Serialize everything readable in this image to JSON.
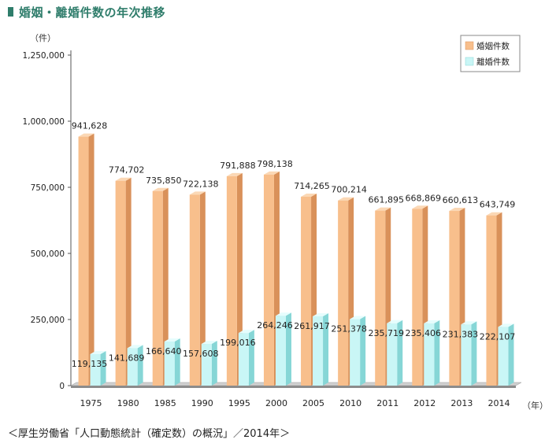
{
  "title": "婚姻・離婚件数の年次推移",
  "unit_label": "（件）",
  "x_unit_label": "（年）",
  "source": "＜厚生労働省「人口動態統計（確定数）の概況」／2014年＞",
  "colors": {
    "title": "#2f7d6b",
    "marriage_front": "#f8bf8c",
    "marriage_side": "#d9915a",
    "marriage_top": "#fbd8b5",
    "divorce_front": "#c9f6f6",
    "divorce_side": "#86d6d6",
    "divorce_top": "#e6fdfd",
    "floor": "#8c8c8c"
  },
  "chart_data": {
    "type": "bar",
    "title": "婚姻・離婚件数の年次推移",
    "ylabel": "（件）",
    "xlabel": "（年）",
    "ylim": [
      0,
      1250000
    ],
    "yticks": [
      0,
      250000,
      500000,
      750000,
      1000000,
      1250000
    ],
    "ytick_labels": [
      "0",
      "250,000",
      "500,000",
      "750,000",
      "1,000,000",
      "1,250,000"
    ],
    "categories": [
      "1975",
      "1980",
      "1985",
      "1990",
      "1995",
      "2000",
      "2005",
      "2010",
      "2011",
      "2012",
      "2013",
      "2014"
    ],
    "legend_position": "top-right",
    "series": [
      {
        "name": "婚姻件数",
        "values": [
          941628,
          774702,
          735850,
          722138,
          791888,
          798138,
          714265,
          700214,
          661895,
          668869,
          660613,
          643749
        ],
        "labels": [
          "941,628",
          "774,702",
          "735,850",
          "722,138",
          "791,888",
          "798,138",
          "714,265",
          "700,214",
          "661,895",
          "668,869",
          "660,613",
          "643,749"
        ]
      },
      {
        "name": "離婚件数",
        "values": [
          119135,
          141689,
          166640,
          157608,
          199016,
          264246,
          261917,
          251378,
          235719,
          235406,
          231383,
          222107
        ],
        "labels": [
          "119,135",
          "141,689",
          "166,640",
          "157,608",
          "199,016",
          "264,246",
          "261,917",
          "251,378",
          "235,719",
          "235,406",
          "231,383",
          "222,107"
        ]
      }
    ]
  }
}
